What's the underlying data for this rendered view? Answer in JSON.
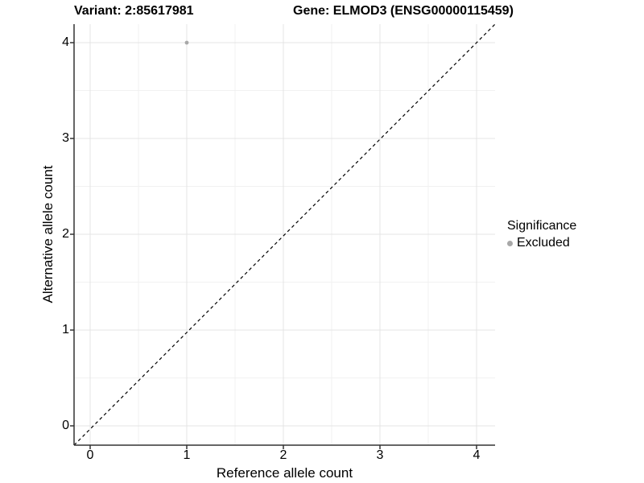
{
  "titles": {
    "variant": "Variant: 2:85617981",
    "gene": "Gene: ELMOD3 (ENSG00000115459)"
  },
  "chart_data": {
    "type": "scatter",
    "title": "Variant: 2:85617981    Gene: ELMOD3 (ENSG00000115459)",
    "xlabel": "Reference allele count",
    "ylabel": "Alternative allele count",
    "x_ticks": [
      0,
      1,
      2,
      3,
      4
    ],
    "y_ticks": [
      0,
      1,
      2,
      3,
      4
    ],
    "xlim": [
      -0.17,
      4.19
    ],
    "ylim": [
      -0.2,
      4.19
    ],
    "grid": "major+minor",
    "series": [
      {
        "name": "Excluded",
        "color": "#a8a8a8",
        "points": [
          {
            "x": 1,
            "y": 4
          }
        ]
      }
    ],
    "identity_line": {
      "style": "dashed",
      "color": "#000000",
      "from": [
        -0.2,
        -0.2
      ],
      "to": [
        4.19,
        4.19
      ]
    },
    "legend": {
      "title": "Significance",
      "position": "right",
      "entries": [
        {
          "label": "Excluded",
          "color": "#a8a8a8"
        }
      ]
    }
  },
  "colors": {
    "background": "#ffffff",
    "grid_major": "#e4e4e4",
    "grid_minor": "#f1f1f1",
    "axis_line": "#333333",
    "point": "#a8a8a8",
    "text": "#000000"
  }
}
